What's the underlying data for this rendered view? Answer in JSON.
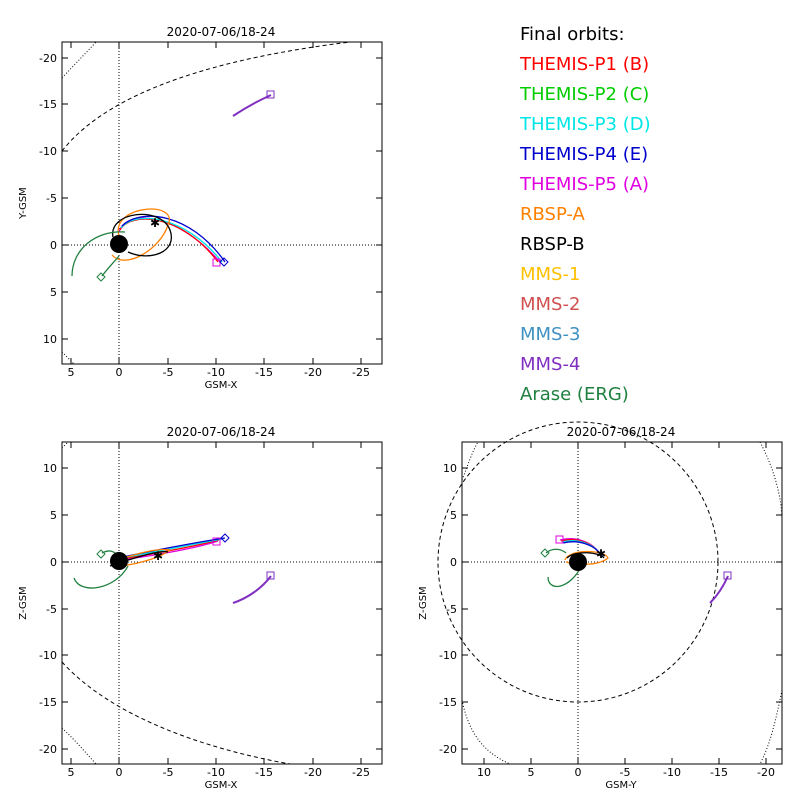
{
  "panels": [
    {
      "id": "xy",
      "title": "2020-07-06/18-24",
      "xlabel": "GSM-X",
      "ylabel": "Y-GSM",
      "xticks": [
        "5",
        "0",
        "-5",
        "-10",
        "-15",
        "-20",
        "-25"
      ],
      "yticks": [
        "-20",
        "-15",
        "-10",
        "-5",
        "0",
        "5",
        "10"
      ]
    },
    {
      "id": "xz",
      "title": "2020-07-06/18-24",
      "xlabel": "GSM-X",
      "ylabel": "Z-GSM",
      "xticks": [
        "5",
        "0",
        "-5",
        "-10",
        "-15",
        "-20",
        "-25"
      ],
      "yticks": [
        "10",
        "5",
        "0",
        "-5",
        "-10",
        "-15",
        "-20"
      ]
    },
    {
      "id": "yz",
      "title": "2020-07-06/18-24",
      "xlabel": "GSM-Y",
      "ylabel": "Z-GSM",
      "xticks": [
        "10",
        "5",
        "0",
        "-5",
        "-10",
        "-15",
        "-20"
      ],
      "yticks": [
        "10",
        "5",
        "0",
        "-5",
        "-10",
        "-15",
        "-20"
      ]
    }
  ],
  "legend": {
    "title": "Final orbits:",
    "items": [
      {
        "label": "THEMIS-P1 (B)",
        "color": "#ff0000"
      },
      {
        "label": "THEMIS-P2 (C)",
        "color": "#00cc00"
      },
      {
        "label": "THEMIS-P3 (D)",
        "color": "#00e5e5"
      },
      {
        "label": "THEMIS-P4 (E)",
        "color": "#0000cc"
      },
      {
        "label": "THEMIS-P5 (A)",
        "color": "#e000e0"
      },
      {
        "label": "RBSP-A",
        "color": "#ff8000"
      },
      {
        "label": "RBSP-B",
        "color": "#000000"
      },
      {
        "label": "MMS-1",
        "color": "#ffc000"
      },
      {
        "label": "MMS-2",
        "color": "#d05050"
      },
      {
        "label": "MMS-3",
        "color": "#4090c0"
      },
      {
        "label": "MMS-4",
        "color": "#8030c0"
      },
      {
        "label": "Arase (ERG)",
        "color": "#208040"
      }
    ]
  }
}
